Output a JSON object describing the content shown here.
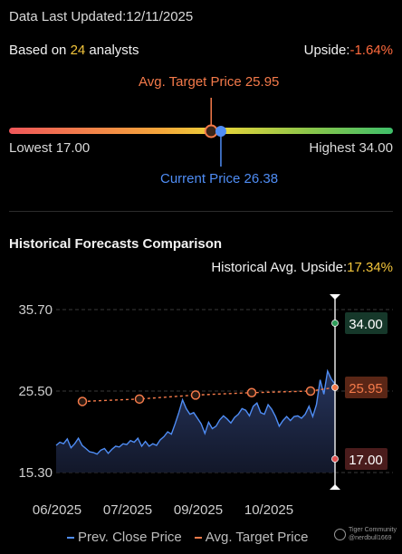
{
  "header": {
    "updated_label": "Data Last Updated:",
    "updated_date": "12/11/2025",
    "analysts_prefix": "Based on ",
    "analysts_count": "24",
    "analysts_suffix": " analysts",
    "upside_label": "Upside:",
    "upside_value": "-1.64%",
    "upside_color": "#ff6a3d"
  },
  "gauge": {
    "target_label": "Avg. Target Price 25.95",
    "current_label": "Current Price 26.38",
    "lowest_label": "Lowest 17.00",
    "highest_label": "Highest 34.00",
    "low": 17.0,
    "high": 34.0,
    "target": 25.95,
    "current": 26.38,
    "gradient_colors": [
      "#f0575a",
      "#f5a83a",
      "#e8d43a",
      "#8cc64a",
      "#3fbf6a"
    ]
  },
  "history": {
    "title": "Historical Forecasts Comparison",
    "upside_label": "Historical Avg. Upside:",
    "upside_value": "17.34%"
  },
  "chart_data": {
    "type": "line",
    "y_ticks": [
      "35.70",
      "25.50",
      "15.30"
    ],
    "x_ticks": [
      "06/2025",
      "07/2025",
      "09/2025",
      "10/2025"
    ],
    "ylim": [
      15.3,
      35.7
    ],
    "grid": true,
    "legend_position": "bottom",
    "series": [
      {
        "name": "Prev. Close Price",
        "color": "#4f8df5",
        "values": [
          18.7,
          19.1,
          18.9,
          19.5,
          18.4,
          18.9,
          19.6,
          18.7,
          18.3,
          17.9,
          17.8,
          17.6,
          18.1,
          18.3,
          17.7,
          18.2,
          18.6,
          18.5,
          18.9,
          18.8,
          19.3,
          19.1,
          19.6,
          18.6,
          19.2,
          18.6,
          18.9,
          18.7,
          19.4,
          19.8,
          20.4,
          20.1,
          21.4,
          22.8,
          24.4,
          23.3,
          22.6,
          22.8,
          22.1,
          21.4,
          20.2,
          21.6,
          20.8,
          21.1,
          21.9,
          22.4,
          22.0,
          21.5,
          22.2,
          22.6,
          23.3,
          23.1,
          22.4,
          23.6,
          24.0,
          22.8,
          22.6,
          23.8,
          23.2,
          22.3,
          21.1,
          21.8,
          22.3,
          21.8,
          22.3,
          22.4,
          22.1,
          22.6,
          23.6,
          22.3,
          23.8,
          26.9,
          25.1,
          28.0,
          27.0,
          26.38
        ]
      },
      {
        "name": "Avg. Target Price",
        "color": "#f47a4a",
        "points": [
          24.2,
          24.5,
          25.0,
          25.3,
          25.5,
          25.95
        ]
      }
    ],
    "end_labels": [
      {
        "value": "34.00",
        "color": "#2f9e5a",
        "bg": "#16382a"
      },
      {
        "value": "25.95",
        "color": "#f47a4a",
        "bg": "#5a2616"
      },
      {
        "value": "17.00",
        "color": "#e05252",
        "bg": "#4a1c1c"
      }
    ]
  },
  "watermark": {
    "line1": "Tiger Community",
    "line2": "@nerdbull1669"
  }
}
